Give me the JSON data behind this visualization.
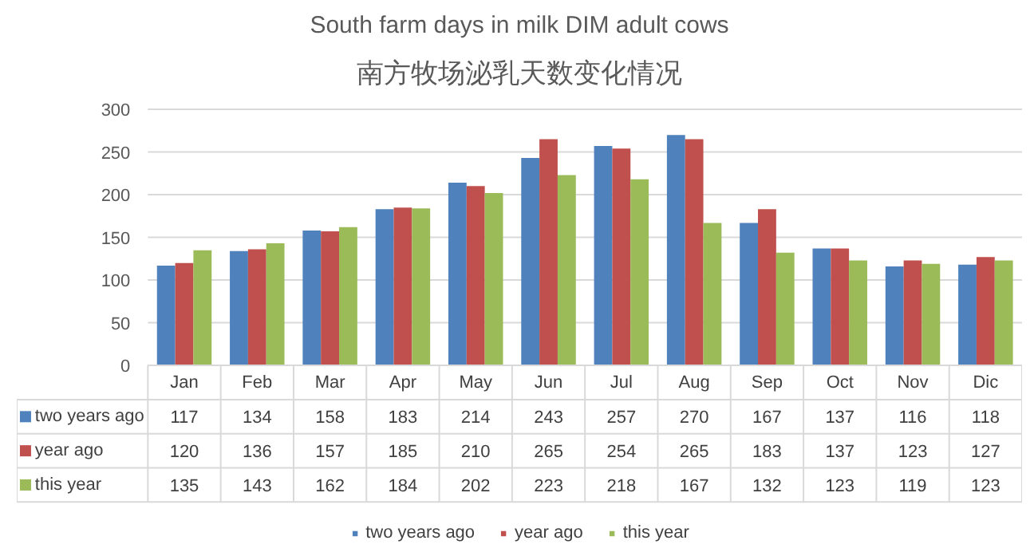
{
  "chart_data": {
    "type": "bar",
    "title": "South farm days in milk DIM adult cows",
    "subtitle": "南方牧场泌乳天数变化情况",
    "categories": [
      "Jan",
      "Feb",
      "Mar",
      "Apr",
      "May",
      "Jun",
      "Jul",
      "Aug",
      "Sep",
      "Oct",
      "Nov",
      "Dic"
    ],
    "series": [
      {
        "name": "two years ago",
        "color": "#4f81bd",
        "values": [
          117,
          134,
          158,
          183,
          214,
          243,
          257,
          270,
          167,
          137,
          116,
          118
        ]
      },
      {
        "name": "year ago",
        "color": "#c0504d",
        "values": [
          120,
          136,
          157,
          185,
          210,
          265,
          254,
          265,
          183,
          137,
          123,
          127
        ]
      },
      {
        "name": "this year",
        "color": "#9bbb59",
        "values": [
          135,
          143,
          162,
          184,
          202,
          223,
          218,
          167,
          132,
          123,
          119,
          123
        ]
      }
    ],
    "ylim": [
      0,
      300
    ],
    "yticks": [
      0,
      50,
      100,
      150,
      200,
      250,
      300
    ],
    "grid": "y",
    "legend": "bottom",
    "data_labels": true
  }
}
